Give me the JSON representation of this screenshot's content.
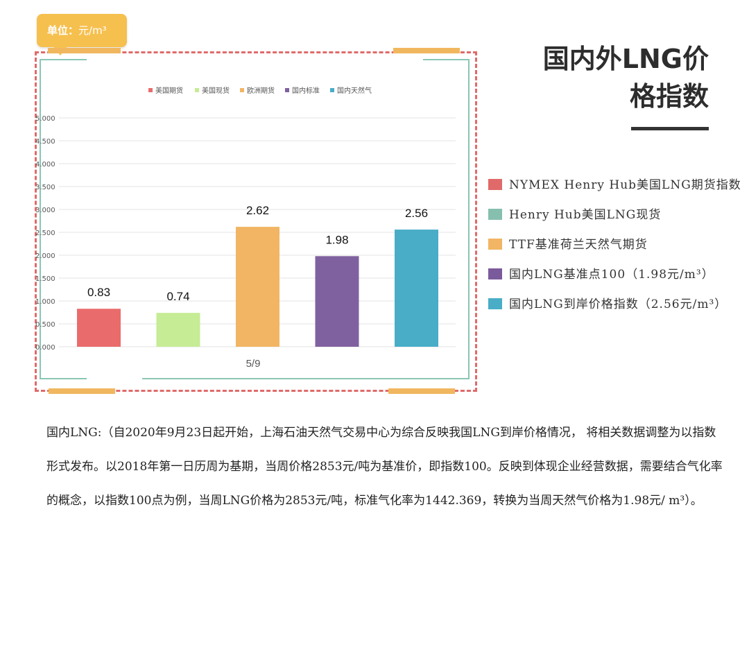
{
  "unit_badge": {
    "label": "单位：",
    "value": "元/m³"
  },
  "title": {
    "line1": "国内外LNG价",
    "line2": "格指数"
  },
  "chart_data": {
    "type": "bar",
    "categories": [
      "5/9"
    ],
    "ylim": [
      0,
      5
    ],
    "yticks": [
      "0.000",
      "0.500",
      "1.000",
      "1.500",
      "2.000",
      "2.500",
      "3.000",
      "3.500",
      "4.000",
      "4.500",
      "5.000"
    ],
    "grid": true,
    "legend_placement": "top",
    "series": [
      {
        "name": "美国期货",
        "value": 0.83,
        "label": "0.83",
        "color": "#ea6b6b"
      },
      {
        "name": "美国现货",
        "value": 0.74,
        "label": "0.74",
        "color": "#c6ec95"
      },
      {
        "name": "欧洲期货",
        "value": 2.62,
        "label": "2.62",
        "color": "#f2b563"
      },
      {
        "name": "国内标准",
        "value": 1.98,
        "label": "1.98",
        "color": "#80619f"
      },
      {
        "name": "国内天然气",
        "value": 2.56,
        "label": "2.56",
        "color": "#49adc7"
      }
    ]
  },
  "legend_right": [
    {
      "text": "NYMEX Henry Hub美国LNG期货指数",
      "color": "#e06a6a"
    },
    {
      "text": "Henry Hub美国LNG现货",
      "color": "#87bfae"
    },
    {
      "text": "TTF基准荷兰天然气期货",
      "color": "#f2b563"
    },
    {
      "text": "国内LNG基准点100（1.98元/m³）",
      "color": "#7b5a9c"
    },
    {
      "text": "国内LNG到岸价格指数（2.56元/m³）",
      "color": "#49adc7"
    }
  ],
  "paragraph": "国内LNG:（自2020年9月23日起开始，上海石油天然气交易中心为综合反映我国LNG到岸价格情况， 将相关数据调整为以指数形式发布。以2018年第一日历周为基期，当周价格2853元/吨为基准价，即指数100。反映到体现企业经营数据，需要结合气化率的概念，以指数100点为例，当周LNG价格为2853元/吨，标准气化率为1442.369，转换为当周天然气价格为1.98元/ m³）。"
}
